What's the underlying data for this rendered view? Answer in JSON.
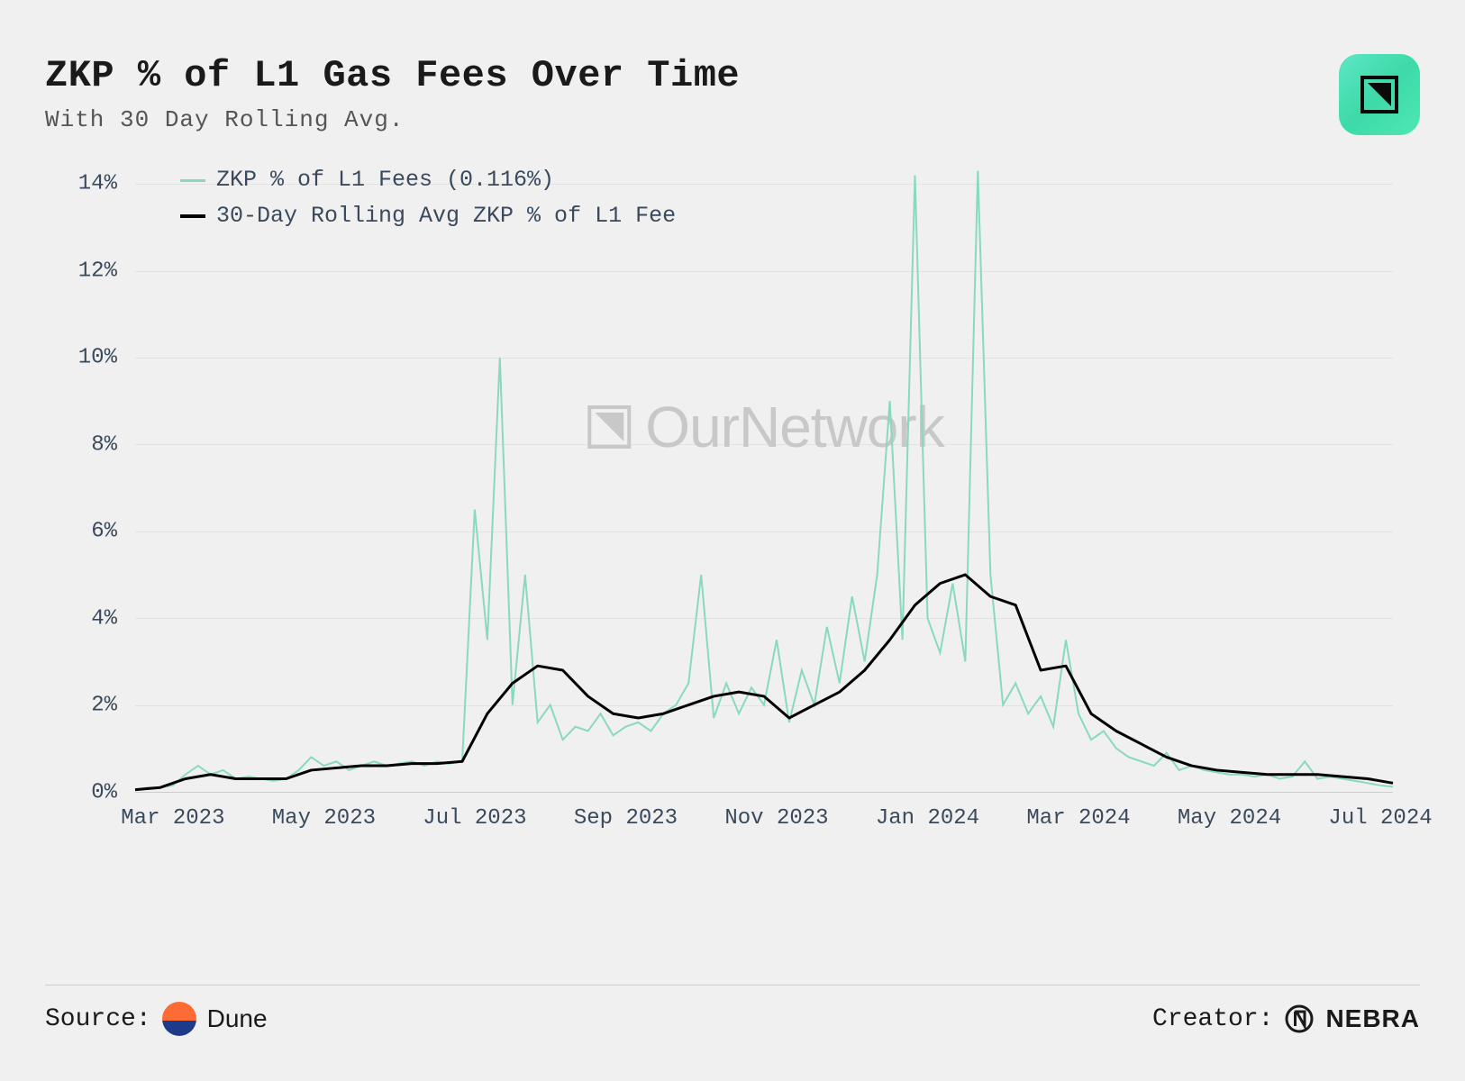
{
  "title": "ZKP % of L1 Gas Fees Over Time",
  "subtitle": "With 30 Day Rolling Avg.",
  "watermark_text": "OurNetwork",
  "badge": {
    "icon": "nebra-badge-icon",
    "gradient_from": "#5ee7c4",
    "gradient_to": "#3dd9a8"
  },
  "footer": {
    "source_label": "Source:",
    "source_name": "Dune",
    "creator_label": "Creator:",
    "creator_name": "NEBRA"
  },
  "chart": {
    "type": "line",
    "background_color": "#f0f0f0",
    "grid_color": "#e2e2e2",
    "text_color": "#3a4a5c",
    "ylim": [
      0,
      14.5
    ],
    "yticks": [
      0,
      2,
      4,
      6,
      8,
      10,
      12,
      14
    ],
    "ytick_labels": [
      "0%",
      "2%",
      "4%",
      "6%",
      "8%",
      "10%",
      "12%",
      "14%"
    ],
    "x_labels": [
      "Mar 2023",
      "May 2023",
      "Jul 2023",
      "Sep 2023",
      "Nov 2023",
      "Jan 2024",
      "Mar 2024",
      "May 2024",
      "Jul 2024"
    ],
    "x_positions_pct": [
      3,
      15,
      27,
      39,
      51,
      63,
      75,
      87,
      99
    ],
    "legend": [
      {
        "label": "ZKP % of L1 Fees (0.116%)",
        "color": "#89d9c0",
        "line_width": 2
      },
      {
        "label": "30-Day Rolling Avg ZKP % of L1 Fee",
        "color": "#000000",
        "line_width": 3
      }
    ],
    "series_raw": {
      "color": "#89d9c0",
      "line_width": 2,
      "x": [
        0,
        1,
        2,
        3,
        4,
        5,
        6,
        7,
        8,
        9,
        10,
        11,
        12,
        13,
        14,
        15,
        16,
        17,
        18,
        19,
        20,
        21,
        22,
        23,
        24,
        25,
        26,
        27,
        28,
        29,
        30,
        31,
        32,
        33,
        34,
        35,
        36,
        37,
        38,
        39,
        40,
        41,
        42,
        43,
        44,
        45,
        46,
        47,
        48,
        49,
        50,
        51,
        52,
        53,
        54,
        55,
        56,
        57,
        58,
        59,
        60,
        61,
        62,
        63,
        64,
        65,
        66,
        67,
        68,
        69,
        70,
        71,
        72,
        73,
        74,
        75,
        76,
        77,
        78,
        79,
        80,
        81,
        82,
        83,
        84,
        85,
        86,
        87,
        88,
        89,
        90,
        91,
        92,
        93,
        94,
        95,
        96,
        97,
        98,
        99,
        100
      ],
      "y": [
        0.05,
        0.1,
        0.1,
        0.15,
        0.4,
        0.6,
        0.4,
        0.5,
        0.3,
        0.35,
        0.3,
        0.25,
        0.3,
        0.5,
        0.8,
        0.6,
        0.7,
        0.5,
        0.6,
        0.7,
        0.6,
        0.65,
        0.7,
        0.6,
        0.7,
        0.65,
        0.7,
        6.5,
        3.5,
        10.0,
        2.0,
        5.0,
        1.6,
        2.0,
        1.2,
        1.5,
        1.4,
        1.8,
        1.3,
        1.5,
        1.6,
        1.4,
        1.8,
        2.0,
        2.5,
        5.0,
        1.7,
        2.5,
        1.8,
        2.4,
        2.0,
        3.5,
        1.6,
        2.8,
        2.0,
        3.8,
        2.5,
        4.5,
        3.0,
        5.0,
        9.0,
        3.5,
        14.2,
        4.0,
        3.2,
        4.8,
        3.0,
        14.3,
        5.0,
        2.0,
        2.5,
        1.8,
        2.2,
        1.5,
        3.5,
        1.8,
        1.2,
        1.4,
        1.0,
        0.8,
        0.7,
        0.6,
        0.9,
        0.5,
        0.6,
        0.5,
        0.45,
        0.4,
        0.4,
        0.35,
        0.4,
        0.3,
        0.35,
        0.7,
        0.3,
        0.35,
        0.3,
        0.25,
        0.2,
        0.15,
        0.116
      ]
    },
    "series_avg": {
      "color": "#000000",
      "line_width": 3,
      "x": [
        0,
        2,
        4,
        6,
        8,
        10,
        12,
        14,
        16,
        18,
        20,
        22,
        24,
        26,
        28,
        30,
        32,
        34,
        36,
        38,
        40,
        42,
        44,
        46,
        48,
        50,
        52,
        54,
        56,
        58,
        60,
        62,
        64,
        66,
        68,
        70,
        72,
        74,
        76,
        78,
        80,
        82,
        84,
        86,
        88,
        90,
        92,
        94,
        96,
        98,
        100
      ],
      "y": [
        0.05,
        0.1,
        0.3,
        0.4,
        0.3,
        0.3,
        0.3,
        0.5,
        0.55,
        0.6,
        0.6,
        0.65,
        0.65,
        0.7,
        1.8,
        2.5,
        2.9,
        2.8,
        2.2,
        1.8,
        1.7,
        1.8,
        2.0,
        2.2,
        2.3,
        2.2,
        1.7,
        2.0,
        2.3,
        2.8,
        3.5,
        4.3,
        4.8,
        5.0,
        4.5,
        4.3,
        2.8,
        2.9,
        1.8,
        1.4,
        1.1,
        0.8,
        0.6,
        0.5,
        0.45,
        0.4,
        0.4,
        0.4,
        0.35,
        0.3,
        0.2
      ]
    }
  }
}
